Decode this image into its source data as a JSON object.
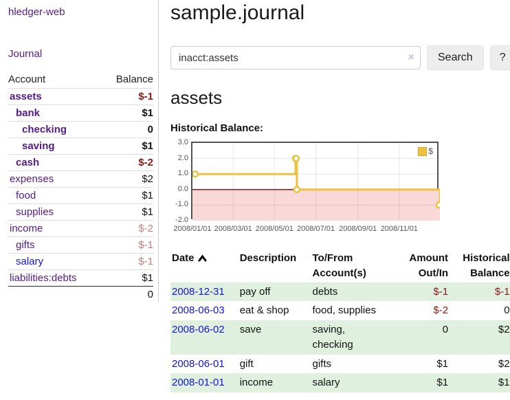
{
  "app": {
    "brand": "hledger-web",
    "nav": {
      "journal": "Journal"
    }
  },
  "sidebar": {
    "accounts": {
      "headers": [
        "Account",
        "Balance"
      ],
      "rows": [
        {
          "account": "assets",
          "balance": "$-1",
          "indent": 1,
          "bold": true,
          "link_color": "purple",
          "amount_class": "neg"
        },
        {
          "account": "bank",
          "balance": "$1",
          "indent": 2,
          "bold": true,
          "link_color": "purple",
          "amount_class": "pos"
        },
        {
          "account": "checking",
          "balance": "0",
          "indent": 3,
          "bold": true,
          "link_color": "purple",
          "amount_class": "pos"
        },
        {
          "account": "saving",
          "balance": "$1",
          "indent": 3,
          "bold": true,
          "link_color": "purple",
          "amount_class": "pos"
        },
        {
          "account": "cash",
          "balance": "$-2",
          "indent": 2,
          "bold": true,
          "link_color": "purple",
          "amount_class": "neg"
        },
        {
          "account": "expenses",
          "balance": "$2",
          "indent": 1,
          "bold": false,
          "link_color": "purple",
          "amount_class": "pos"
        },
        {
          "account": "food",
          "balance": "$1",
          "indent": 2,
          "bold": false,
          "link_color": "purple",
          "amount_class": "pos"
        },
        {
          "account": "supplies",
          "balance": "$1",
          "indent": 2,
          "bold": false,
          "link_color": "purple",
          "amount_class": "pos"
        },
        {
          "account": "income",
          "balance": "$-2",
          "indent": 1,
          "bold": false,
          "link_color": "purple",
          "amount_class": "dim"
        },
        {
          "account": "gifts",
          "balance": "$-1",
          "indent": 2,
          "bold": false,
          "link_color": "purple",
          "amount_class": "dim"
        },
        {
          "account": "salary",
          "balance": "$-1",
          "indent": 2,
          "bold": false,
          "link_color": "blue",
          "amount_class": "dim"
        },
        {
          "account": "liabilities:debts",
          "balance": "$1",
          "indent": 1,
          "bold": false,
          "link_color": "purple",
          "amount_class": "pos"
        }
      ],
      "total": "0"
    }
  },
  "main": {
    "title": "sample.journal",
    "search": {
      "value": "inacct:assets",
      "clear_icon_char": "×",
      "button_label": "Search",
      "help_label": "?"
    },
    "account_heading": "assets",
    "chart_label": "Historical Balance:"
  },
  "chart_data": {
    "type": "line",
    "title": "Historical Balance",
    "step": true,
    "series": [
      {
        "name": "$",
        "color": "#edc240",
        "points": [
          [
            "2008/01/01",
            1
          ],
          [
            "2008/06/01",
            2
          ],
          [
            "2008/06/02",
            2
          ],
          [
            "2008/06/03",
            0
          ],
          [
            "2008/12/31",
            -1
          ]
        ]
      }
    ],
    "xlim": [
      "2008/01/01",
      "2008/12/31"
    ],
    "ylim": [
      -2.0,
      3.0
    ],
    "yticks": [
      3.0,
      2.0,
      1.0,
      0.0,
      -1.0,
      -2.0
    ],
    "xticks": [
      "2008/01/01",
      "2008/03/01",
      "2008/05/01",
      "2008/07/01",
      "2008/09/01",
      "2008/11/01"
    ],
    "grid": true,
    "legend_position": "top-right",
    "colors": {
      "series": "#edc240",
      "negative_zone": "#f9d8d8",
      "zero_line": "#8b0000",
      "grid_line": "rgba(0,0,0,0.09)",
      "border": "#545454"
    }
  },
  "register": {
    "headers": [
      "Date",
      "Description",
      "To/From Account(s)",
      "Amount Out/In",
      "Historical Balance"
    ],
    "sort_icon": "sort-ascending",
    "rows": [
      {
        "date": "2008-12-31",
        "description": "pay off",
        "accounts": "debts",
        "amount": "$-1",
        "amount_class": "neg",
        "balance": "$-1",
        "balance_class": "neg"
      },
      {
        "date": "2008-06-03",
        "description": "eat & shop",
        "accounts": "food, supplies",
        "amount": "$-2",
        "amount_class": "neg",
        "balance": "0",
        "balance_class": "pos"
      },
      {
        "date": "2008-06-02",
        "description": "save",
        "accounts": "saving, checking",
        "amount": "0",
        "amount_class": "pos",
        "balance": "$2",
        "balance_class": "pos"
      },
      {
        "date": "2008-06-01",
        "description": "gift",
        "accounts": "gifts",
        "amount": "$1",
        "amount_class": "pos",
        "balance": "$2",
        "balance_class": "pos"
      },
      {
        "date": "2008-01-01",
        "description": "income",
        "accounts": "salary",
        "amount": "$1",
        "amount_class": "pos",
        "balance": "$1",
        "balance_class": "pos"
      }
    ]
  }
}
